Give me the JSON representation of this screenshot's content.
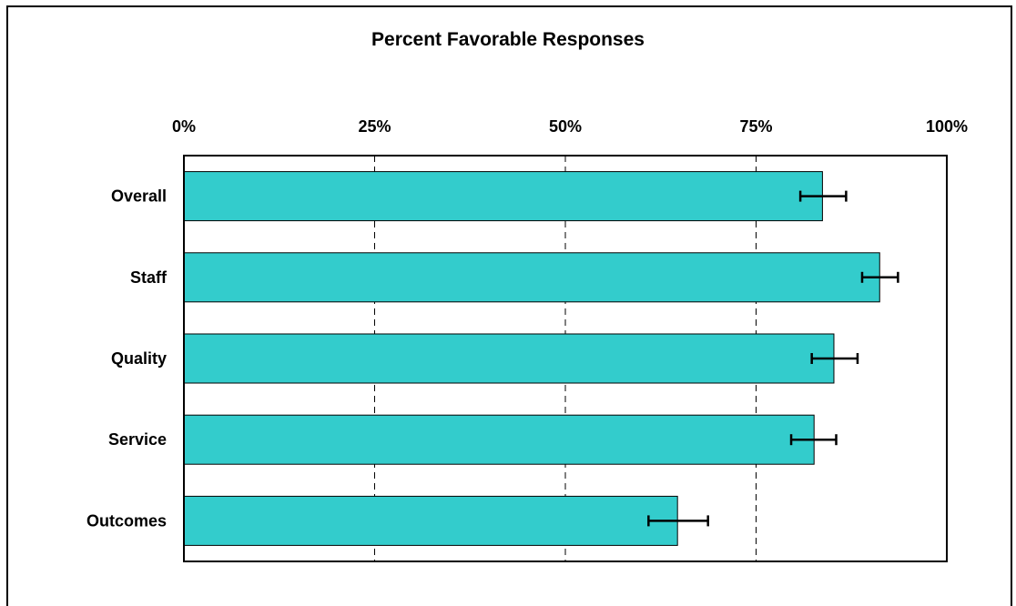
{
  "chart_data": {
    "type": "bar",
    "orientation": "horizontal",
    "title": "Percent Favorable Responses",
    "xlabel": "",
    "ylabel": "",
    "xlim": [
      0,
      100
    ],
    "ticks": [
      0,
      25,
      50,
      75,
      100
    ],
    "tick_labels": [
      "0%",
      "25%",
      "50%",
      "75%",
      "100%"
    ],
    "tick_position": "top",
    "grid": "vertical dashed",
    "categories": [
      "Overall",
      "Staff",
      "Quality",
      "Service",
      "Outcomes"
    ],
    "values": [
      83.7,
      91.2,
      85.2,
      82.6,
      64.7
    ],
    "error_low": [
      80.8,
      88.9,
      82.3,
      79.6,
      60.9
    ],
    "error_high": [
      86.8,
      93.6,
      88.3,
      85.5,
      68.7
    ],
    "bar_color": "#33CCCC"
  }
}
